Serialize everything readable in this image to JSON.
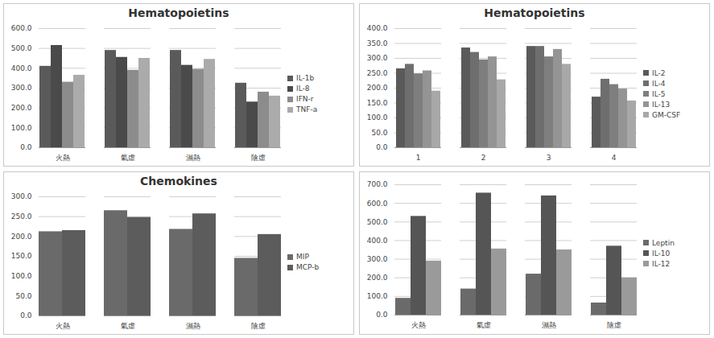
{
  "chart_data": [
    {
      "type": "bar",
      "title": "Hematopoietins",
      "categories": [
        "火熱",
        "氣虛",
        "濕熱",
        "陰虛"
      ],
      "series": [
        {
          "name": "IL-1b",
          "color": "#5a5a5a",
          "values": [
            410,
            490,
            490,
            325
          ]
        },
        {
          "name": "IL-8",
          "color": "#4a4a4a",
          "values": [
            515,
            455,
            415,
            230
          ]
        },
        {
          "name": "IFN-r",
          "color": "#8c8c8c",
          "values": [
            330,
            390,
            395,
            280
          ]
        },
        {
          "name": "TNF-a",
          "color": "#ababab",
          "values": [
            365,
            450,
            445,
            260
          ]
        }
      ],
      "ylim": [
        0,
        600
      ],
      "yticks": [
        {
          "value": 0,
          "label": "0.0"
        },
        {
          "value": 100,
          "label": "100.0"
        },
        {
          "value": 200,
          "label": "200.0"
        },
        {
          "value": 300,
          "label": "300.0"
        },
        {
          "value": 400,
          "label": "400.0"
        },
        {
          "value": 500,
          "label": "500.0"
        },
        {
          "value": 600,
          "label": "600.0"
        }
      ],
      "grid": true,
      "legend": "right"
    },
    {
      "type": "bar",
      "title": "Hematopoietins",
      "categories": [
        "1",
        "2",
        "3",
        "4"
      ],
      "series": [
        {
          "name": "IL-2",
          "color": "#5a5a5a",
          "values": [
            265,
            335,
            340,
            170
          ]
        },
        {
          "name": "IL-4",
          "color": "#6e6e6e",
          "values": [
            280,
            320,
            340,
            230
          ]
        },
        {
          "name": "IL-5",
          "color": "#7e7e7e",
          "values": [
            248,
            295,
            305,
            212
          ]
        },
        {
          "name": "IL-13",
          "color": "#949494",
          "values": [
            258,
            305,
            330,
            197
          ]
        },
        {
          "name": "GM-CSF",
          "color": "#a8a8a8",
          "values": [
            190,
            228,
            280,
            157
          ]
        }
      ],
      "ylim": [
        0,
        400
      ],
      "yticks": [
        {
          "value": 0,
          "label": "0.0"
        },
        {
          "value": 50,
          "label": "50.0"
        },
        {
          "value": 100,
          "label": "100.0"
        },
        {
          "value": 150,
          "label": "150.0"
        },
        {
          "value": 200,
          "label": "200.0"
        },
        {
          "value": 250,
          "label": "250.0"
        },
        {
          "value": 300,
          "label": "300.0"
        },
        {
          "value": 350,
          "label": "350.0"
        },
        {
          "value": 400,
          "label": "400.0"
        }
      ],
      "grid": true,
      "legend": "right"
    },
    {
      "type": "bar",
      "title": "Chemokines",
      "categories": [
        "火熱",
        "氣虛",
        "濕熱",
        "陰虛"
      ],
      "series": [
        {
          "name": "MIP",
          "color": "#6a6a6a",
          "values": [
            212,
            265,
            218,
            145
          ]
        },
        {
          "name": "MCP-b",
          "color": "#5c5c5c",
          "values": [
            215,
            248,
            257,
            205
          ]
        }
      ],
      "ylim": [
        0,
        300
      ],
      "yticks": [
        {
          "value": 0,
          "label": "0.0"
        },
        {
          "value": 50,
          "label": "50.0"
        },
        {
          "value": 100,
          "label": "100.0"
        },
        {
          "value": 150,
          "label": "150.0"
        },
        {
          "value": 200,
          "label": "200.0"
        },
        {
          "value": 250,
          "label": "250.0"
        },
        {
          "value": 300,
          "label": "300.0"
        }
      ],
      "grid": true,
      "legend": "right"
    },
    {
      "type": "bar",
      "categories": [
        "火熱",
        "氣虛",
        "濕熱",
        "陰虛"
      ],
      "series": [
        {
          "name": "Leptin",
          "color": "#6a6a6a",
          "values": [
            90,
            140,
            220,
            65
          ]
        },
        {
          "name": "IL-10",
          "color": "#555555",
          "values": [
            530,
            655,
            640,
            370
          ]
        },
        {
          "name": "IL-12",
          "color": "#9a9a9a",
          "values": [
            290,
            355,
            350,
            200
          ]
        }
      ],
      "ylim": [
        0,
        700
      ],
      "yticks": [
        {
          "value": 0,
          "label": "0.0"
        },
        {
          "value": 100,
          "label": "100.0"
        },
        {
          "value": 200,
          "label": "200.0"
        },
        {
          "value": 300,
          "label": "300.0"
        },
        {
          "value": 400,
          "label": "400.0"
        },
        {
          "value": 500,
          "label": "500.0"
        },
        {
          "value": 600,
          "label": "600.0"
        },
        {
          "value": 700,
          "label": "700.0"
        }
      ],
      "grid": true,
      "legend": "right"
    }
  ]
}
